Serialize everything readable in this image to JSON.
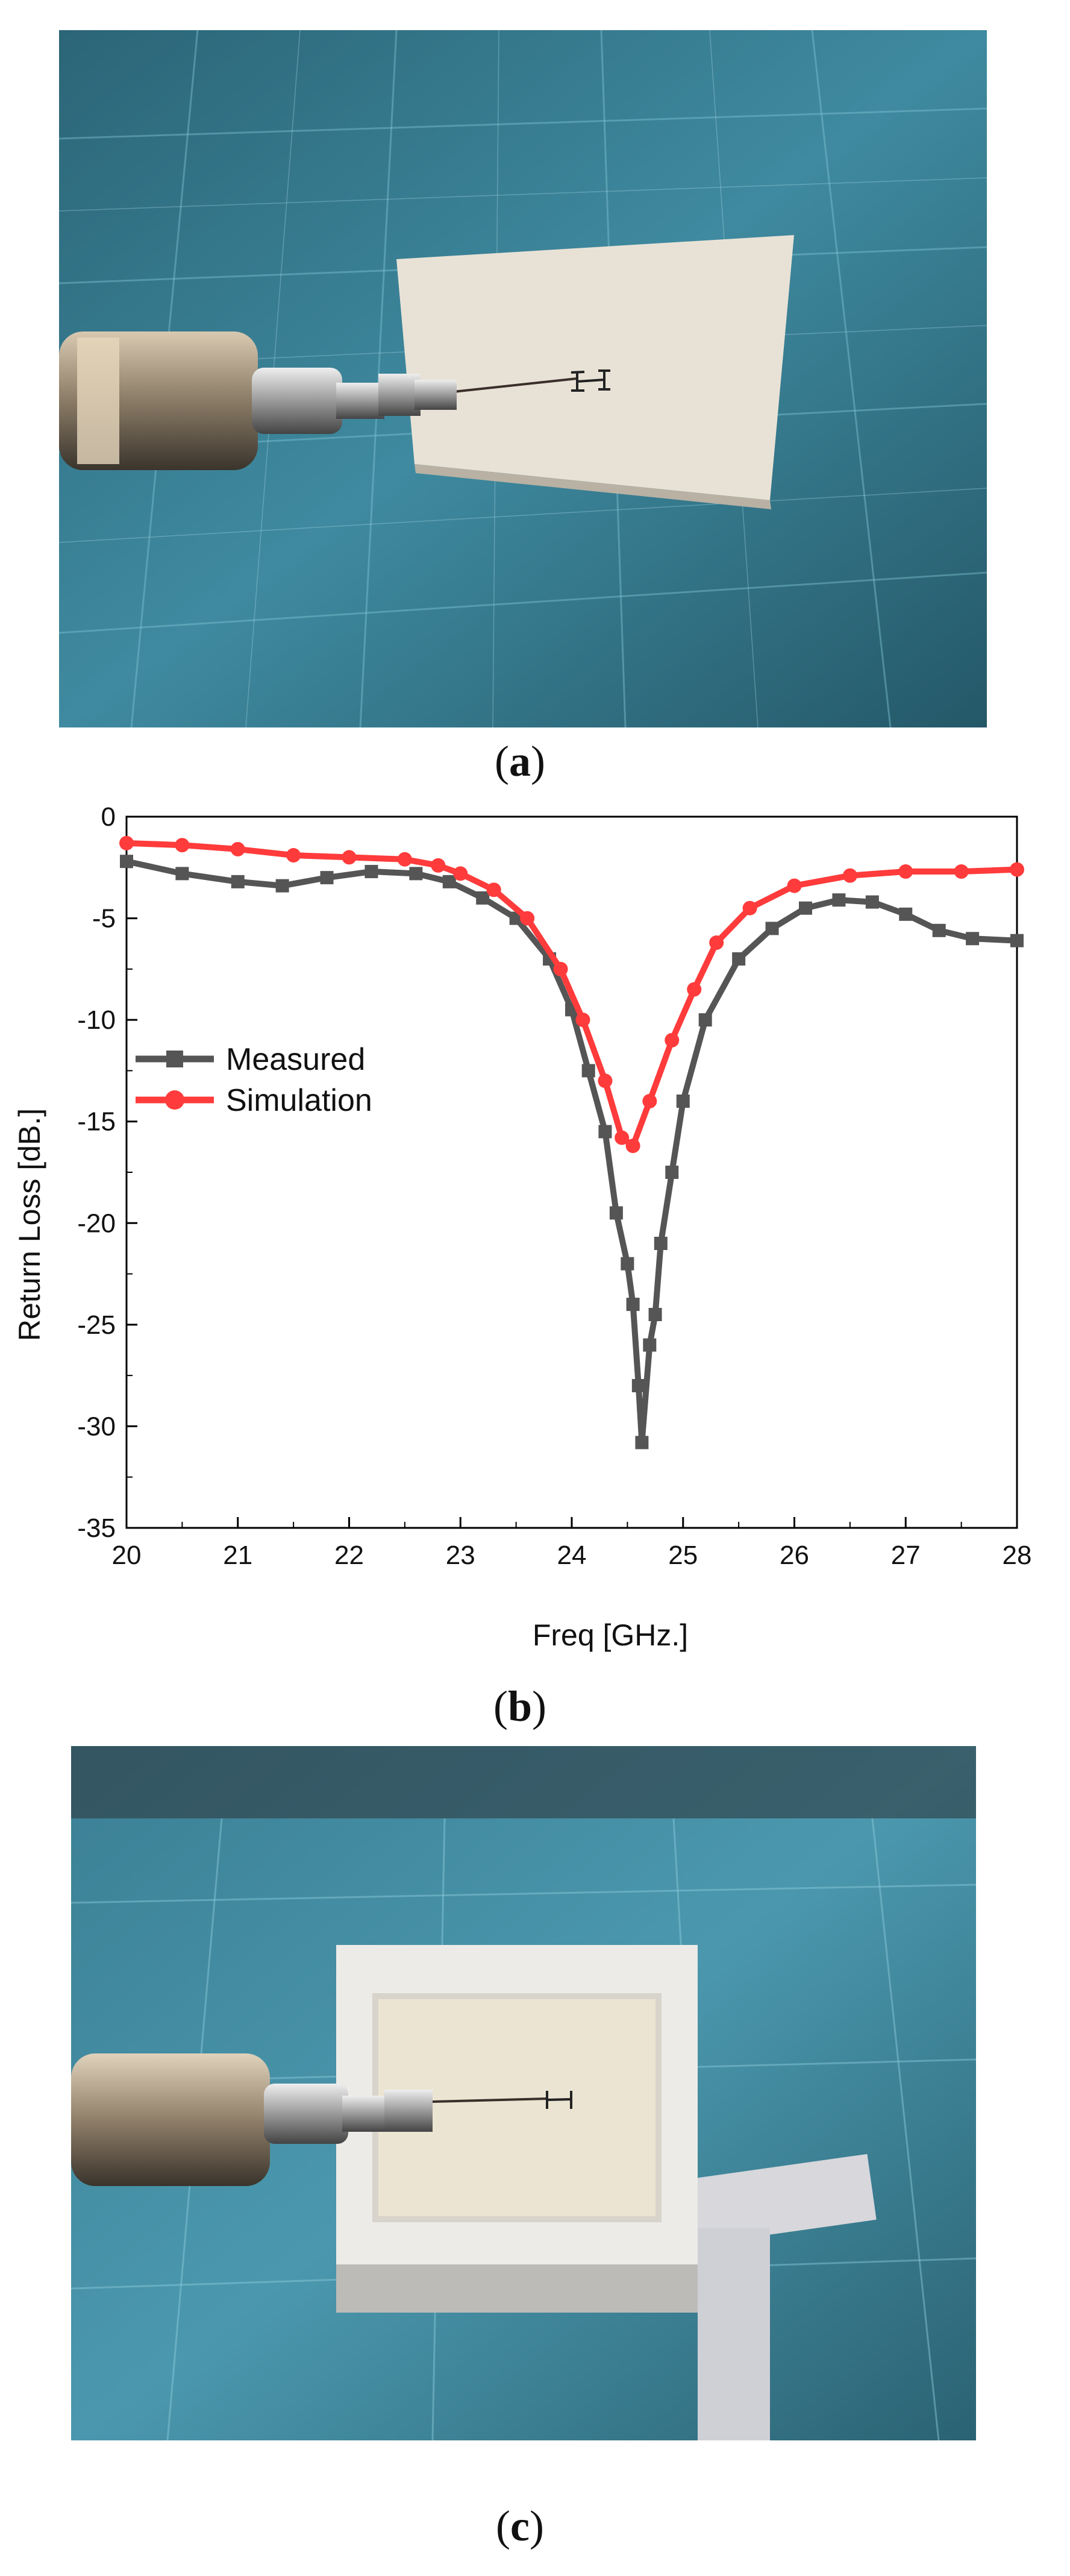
{
  "captions": {
    "a": "a",
    "b": "b",
    "c": "c"
  },
  "photos": {
    "a": {
      "description": ""
    },
    "c": {
      "description": ""
    }
  },
  "colors": {
    "measured": "#555555",
    "simulation": "#ff3b3b",
    "grid": "#6fa2b3"
  },
  "chart_data": {
    "type": "line",
    "title": "",
    "xlabel": "Freq [GHz.]",
    "ylabel": "Return Loss [dB.]",
    "xlim": [
      20,
      28
    ],
    "ylim": [
      -35,
      0
    ],
    "xticks": [
      "20",
      "21",
      "22",
      "23",
      "24",
      "25",
      "26",
      "27",
      "28"
    ],
    "yticks": [
      "0",
      "-5",
      "-10",
      "-15",
      "-20",
      "-25",
      "-30",
      "-35"
    ],
    "legend_position": "left-middle",
    "series": [
      {
        "name": "Measured",
        "marker": "square",
        "color": "#555555",
        "x": [
          20.0,
          20.5,
          21.0,
          21.4,
          21.8,
          22.2,
          22.6,
          22.9,
          23.2,
          23.5,
          23.8,
          24.0,
          24.15,
          24.3,
          24.4,
          24.5,
          24.55,
          24.6,
          24.63,
          24.7,
          24.75,
          24.8,
          24.9,
          25.0,
          25.2,
          25.5,
          25.8,
          26.1,
          26.4,
          26.7,
          27.0,
          27.3,
          27.6,
          28.0
        ],
        "y": [
          -2.2,
          -2.8,
          -3.2,
          -3.4,
          -3.0,
          -2.7,
          -2.8,
          -3.2,
          -4.0,
          -5.0,
          -7.0,
          -9.5,
          -12.5,
          -15.5,
          -19.5,
          -22.0,
          -24.0,
          -28.0,
          -30.8,
          -26.0,
          -24.5,
          -21.0,
          -17.5,
          -14.0,
          -10.0,
          -7.0,
          -5.5,
          -4.5,
          -4.1,
          -4.2,
          -4.8,
          -5.6,
          -6.0,
          -6.1
        ]
      },
      {
        "name": "Simulation",
        "marker": "circle",
        "color": "#ff3b3b",
        "x": [
          20.0,
          20.5,
          21.0,
          21.5,
          22.0,
          22.5,
          22.8,
          23.0,
          23.3,
          23.6,
          23.9,
          24.1,
          24.3,
          24.45,
          24.55,
          24.7,
          24.9,
          25.1,
          25.3,
          25.6,
          26.0,
          26.5,
          27.0,
          27.5,
          28.0
        ],
        "y": [
          -1.3,
          -1.4,
          -1.6,
          -1.9,
          -2.0,
          -2.1,
          -2.4,
          -2.8,
          -3.6,
          -5.0,
          -7.5,
          -10.0,
          -13.0,
          -15.8,
          -16.2,
          -14.0,
          -11.0,
          -8.5,
          -6.2,
          -4.5,
          -3.4,
          -2.9,
          -2.7,
          -2.7,
          -2.6
        ]
      }
    ]
  }
}
